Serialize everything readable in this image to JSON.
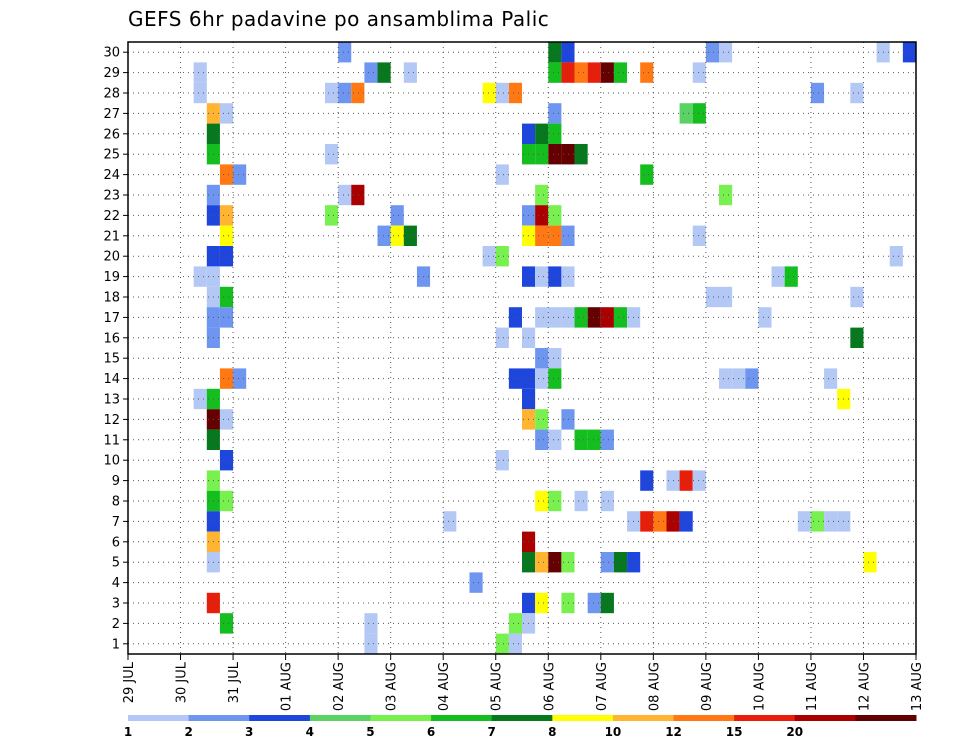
{
  "chart_data": {
    "type": "heatmap",
    "title": "GEFS 6hr padavine po ansamblima Palic",
    "x_tick_labels": [
      "29 JUL",
      "30 JUL",
      "31 JUL",
      "01 AUG",
      "02 AUG",
      "03 AUG",
      "04 AUG",
      "05 AUG",
      "06 AUG",
      "07 AUG",
      "08 AUG",
      "09 AUG",
      "10 AUG",
      "11 AUG",
      "12 AUG",
      "13 AUG"
    ],
    "y_tick_labels": [
      "1",
      "2",
      "3",
      "4",
      "5",
      "6",
      "7",
      "8",
      "9",
      "10",
      "11",
      "12",
      "13",
      "14",
      "15",
      "16",
      "17",
      "18",
      "19",
      "20",
      "21",
      "22",
      "23",
      "24",
      "25",
      "26",
      "27",
      "28",
      "29",
      "30"
    ],
    "x_unit": "6-hour step (4 per day)",
    "x_range": [
      0,
      60
    ],
    "y_range": [
      1,
      30
    ],
    "grid": "dotted",
    "legend": {
      "position": "bottom",
      "labels": [
        "1",
        "2",
        "3",
        "4",
        "5",
        "6",
        "7",
        "8",
        "10",
        "12",
        "15",
        "20"
      ],
      "colors": [
        "#b4c8f5",
        "#6e96f0",
        "#1e46dc",
        "#5ad264",
        "#78f050",
        "#14be1e",
        "#08781e",
        "#ffff00",
        "#ffb432",
        "#ff7814",
        "#e61e0a",
        "#aa0000",
        "#640000"
      ]
    },
    "cells": [
      {
        "x": 16,
        "y": 30,
        "c": 1
      },
      {
        "x": 32,
        "y": 30,
        "c": 6
      },
      {
        "x": 33,
        "y": 30,
        "c": 2
      },
      {
        "x": 44,
        "y": 30,
        "c": 1
      },
      {
        "x": 45,
        "y": 30,
        "c": 0
      },
      {
        "x": 57,
        "y": 30,
        "c": 0
      },
      {
        "x": 59,
        "y": 30,
        "c": 2
      },
      {
        "x": 5,
        "y": 29,
        "c": 0
      },
      {
        "x": 18,
        "y": 29,
        "c": 1
      },
      {
        "x": 19,
        "y": 29,
        "c": 6
      },
      {
        "x": 21,
        "y": 29,
        "c": 0
      },
      {
        "x": 32,
        "y": 29,
        "c": 5
      },
      {
        "x": 33,
        "y": 29,
        "c": 10
      },
      {
        "x": 34,
        "y": 29,
        "c": 9
      },
      {
        "x": 35,
        "y": 29,
        "c": 10
      },
      {
        "x": 36,
        "y": 29,
        "c": 12
      },
      {
        "x": 37,
        "y": 29,
        "c": 5
      },
      {
        "x": 39,
        "y": 29,
        "c": 9
      },
      {
        "x": 43,
        "y": 29,
        "c": 0
      },
      {
        "x": 5,
        "y": 28,
        "c": 0
      },
      {
        "x": 15,
        "y": 28,
        "c": 0
      },
      {
        "x": 16,
        "y": 28,
        "c": 1
      },
      {
        "x": 17,
        "y": 28,
        "c": 9
      },
      {
        "x": 27,
        "y": 28,
        "c": 7
      },
      {
        "x": 28,
        "y": 28,
        "c": 0
      },
      {
        "x": 29,
        "y": 28,
        "c": 9
      },
      {
        "x": 52,
        "y": 28,
        "c": 1
      },
      {
        "x": 55,
        "y": 28,
        "c": 0
      },
      {
        "x": 6,
        "y": 27,
        "c": 8
      },
      {
        "x": 7,
        "y": 27,
        "c": 0
      },
      {
        "x": 32,
        "y": 27,
        "c": 1
      },
      {
        "x": 42,
        "y": 27,
        "c": 3
      },
      {
        "x": 43,
        "y": 27,
        "c": 5
      },
      {
        "x": 6,
        "y": 26,
        "c": 6
      },
      {
        "x": 30,
        "y": 26,
        "c": 2
      },
      {
        "x": 31,
        "y": 26,
        "c": 6
      },
      {
        "x": 32,
        "y": 26,
        "c": 5
      },
      {
        "x": 6,
        "y": 25,
        "c": 5
      },
      {
        "x": 15,
        "y": 25,
        "c": 0
      },
      {
        "x": 30,
        "y": 25,
        "c": 5
      },
      {
        "x": 31,
        "y": 25,
        "c": 5
      },
      {
        "x": 32,
        "y": 25,
        "c": 12
      },
      {
        "x": 33,
        "y": 25,
        "c": 12
      },
      {
        "x": 34,
        "y": 25,
        "c": 6
      },
      {
        "x": 7,
        "y": 24,
        "c": 9
      },
      {
        "x": 8,
        "y": 24,
        "c": 1
      },
      {
        "x": 28,
        "y": 24,
        "c": 0
      },
      {
        "x": 39,
        "y": 24,
        "c": 5
      },
      {
        "x": 6,
        "y": 23,
        "c": 1
      },
      {
        "x": 16,
        "y": 23,
        "c": 0
      },
      {
        "x": 17,
        "y": 23,
        "c": 11
      },
      {
        "x": 31,
        "y": 23,
        "c": 4
      },
      {
        "x": 45,
        "y": 23,
        "c": 4
      },
      {
        "x": 6,
        "y": 22,
        "c": 2
      },
      {
        "x": 7,
        "y": 22,
        "c": 8
      },
      {
        "x": 15,
        "y": 22,
        "c": 4
      },
      {
        "x": 20,
        "y": 22,
        "c": 1
      },
      {
        "x": 30,
        "y": 22,
        "c": 1
      },
      {
        "x": 31,
        "y": 22,
        "c": 11
      },
      {
        "x": 32,
        "y": 22,
        "c": 4
      },
      {
        "x": 7,
        "y": 21,
        "c": 7
      },
      {
        "x": 19,
        "y": 21,
        "c": 1
      },
      {
        "x": 20,
        "y": 21,
        "c": 7
      },
      {
        "x": 21,
        "y": 21,
        "c": 6
      },
      {
        "x": 30,
        "y": 21,
        "c": 7
      },
      {
        "x": 31,
        "y": 21,
        "c": 9
      },
      {
        "x": 32,
        "y": 21,
        "c": 9
      },
      {
        "x": 33,
        "y": 21,
        "c": 1
      },
      {
        "x": 43,
        "y": 21,
        "c": 0
      },
      {
        "x": 6,
        "y": 20,
        "c": 2
      },
      {
        "x": 7,
        "y": 20,
        "c": 2
      },
      {
        "x": 27,
        "y": 20,
        "c": 0
      },
      {
        "x": 28,
        "y": 20,
        "c": 4
      },
      {
        "x": 58,
        "y": 20,
        "c": 0
      },
      {
        "x": 5,
        "y": 19,
        "c": 0
      },
      {
        "x": 6,
        "y": 19,
        "c": 0
      },
      {
        "x": 22,
        "y": 19,
        "c": 1
      },
      {
        "x": 30,
        "y": 19,
        "c": 2
      },
      {
        "x": 31,
        "y": 19,
        "c": 0
      },
      {
        "x": 32,
        "y": 19,
        "c": 2
      },
      {
        "x": 33,
        "y": 19,
        "c": 0
      },
      {
        "x": 49,
        "y": 19,
        "c": 0
      },
      {
        "x": 50,
        "y": 19,
        "c": 5
      },
      {
        "x": 6,
        "y": 18,
        "c": 0
      },
      {
        "x": 7,
        "y": 18,
        "c": 5
      },
      {
        "x": 44,
        "y": 18,
        "c": 0
      },
      {
        "x": 45,
        "y": 18,
        "c": 0
      },
      {
        "x": 55,
        "y": 18,
        "c": 0
      },
      {
        "x": 6,
        "y": 17,
        "c": 1
      },
      {
        "x": 7,
        "y": 17,
        "c": 1
      },
      {
        "x": 29,
        "y": 17,
        "c": 2
      },
      {
        "x": 31,
        "y": 17,
        "c": 0
      },
      {
        "x": 32,
        "y": 17,
        "c": 0
      },
      {
        "x": 33,
        "y": 17,
        "c": 0
      },
      {
        "x": 34,
        "y": 17,
        "c": 5
      },
      {
        "x": 35,
        "y": 17,
        "c": 12
      },
      {
        "x": 36,
        "y": 17,
        "c": 11
      },
      {
        "x": 37,
        "y": 17,
        "c": 5
      },
      {
        "x": 38,
        "y": 17,
        "c": 0
      },
      {
        "x": 48,
        "y": 17,
        "c": 0
      },
      {
        "x": 6,
        "y": 16,
        "c": 1
      },
      {
        "x": 28,
        "y": 16,
        "c": 0
      },
      {
        "x": 30,
        "y": 16,
        "c": 0
      },
      {
        "x": 55,
        "y": 16,
        "c": 6
      },
      {
        "x": 31,
        "y": 15,
        "c": 1
      },
      {
        "x": 32,
        "y": 15,
        "c": 0
      },
      {
        "x": 7,
        "y": 14,
        "c": 9
      },
      {
        "x": 8,
        "y": 14,
        "c": 1
      },
      {
        "x": 29,
        "y": 14,
        "c": 2
      },
      {
        "x": 30,
        "y": 14,
        "c": 2
      },
      {
        "x": 31,
        "y": 14,
        "c": 0
      },
      {
        "x": 32,
        "y": 14,
        "c": 5
      },
      {
        "x": 45,
        "y": 14,
        "c": 0
      },
      {
        "x": 46,
        "y": 14,
        "c": 0
      },
      {
        "x": 47,
        "y": 14,
        "c": 1
      },
      {
        "x": 53,
        "y": 14,
        "c": 0
      },
      {
        "x": 5,
        "y": 13,
        "c": 0
      },
      {
        "x": 6,
        "y": 13,
        "c": 5
      },
      {
        "x": 30,
        "y": 13,
        "c": 2
      },
      {
        "x": 54,
        "y": 13,
        "c": 7
      },
      {
        "x": 6,
        "y": 12,
        "c": 12
      },
      {
        "x": 7,
        "y": 12,
        "c": 0
      },
      {
        "x": 30,
        "y": 12,
        "c": 8
      },
      {
        "x": 31,
        "y": 12,
        "c": 4
      },
      {
        "x": 33,
        "y": 12,
        "c": 1
      },
      {
        "x": 6,
        "y": 11,
        "c": 6
      },
      {
        "x": 31,
        "y": 11,
        "c": 1
      },
      {
        "x": 32,
        "y": 11,
        "c": 0
      },
      {
        "x": 34,
        "y": 11,
        "c": 5
      },
      {
        "x": 35,
        "y": 11,
        "c": 5
      },
      {
        "x": 36,
        "y": 11,
        "c": 1
      },
      {
        "x": 7,
        "y": 10,
        "c": 2
      },
      {
        "x": 28,
        "y": 10,
        "c": 0
      },
      {
        "x": 6,
        "y": 9,
        "c": 4
      },
      {
        "x": 39,
        "y": 9,
        "c": 2
      },
      {
        "x": 41,
        "y": 9,
        "c": 0
      },
      {
        "x": 42,
        "y": 9,
        "c": 10
      },
      {
        "x": 43,
        "y": 9,
        "c": 0
      },
      {
        "x": 6,
        "y": 8,
        "c": 5
      },
      {
        "x": 7,
        "y": 8,
        "c": 4
      },
      {
        "x": 31,
        "y": 8,
        "c": 7
      },
      {
        "x": 32,
        "y": 8,
        "c": 4
      },
      {
        "x": 34,
        "y": 8,
        "c": 0
      },
      {
        "x": 36,
        "y": 8,
        "c": 0
      },
      {
        "x": 6,
        "y": 7,
        "c": 2
      },
      {
        "x": 24,
        "y": 7,
        "c": 0
      },
      {
        "x": 38,
        "y": 7,
        "c": 0
      },
      {
        "x": 39,
        "y": 7,
        "c": 10
      },
      {
        "x": 40,
        "y": 7,
        "c": 9
      },
      {
        "x": 41,
        "y": 7,
        "c": 11
      },
      {
        "x": 42,
        "y": 7,
        "c": 2
      },
      {
        "x": 51,
        "y": 7,
        "c": 0
      },
      {
        "x": 52,
        "y": 7,
        "c": 4
      },
      {
        "x": 53,
        "y": 7,
        "c": 0
      },
      {
        "x": 54,
        "y": 7,
        "c": 0
      },
      {
        "x": 6,
        "y": 6,
        "c": 8
      },
      {
        "x": 30,
        "y": 6,
        "c": 11
      },
      {
        "x": 6,
        "y": 5,
        "c": 0
      },
      {
        "x": 30,
        "y": 5,
        "c": 6
      },
      {
        "x": 31,
        "y": 5,
        "c": 8
      },
      {
        "x": 32,
        "y": 5,
        "c": 12
      },
      {
        "x": 33,
        "y": 5,
        "c": 4
      },
      {
        "x": 36,
        "y": 5,
        "c": 1
      },
      {
        "x": 37,
        "y": 5,
        "c": 6
      },
      {
        "x": 38,
        "y": 5,
        "c": 2
      },
      {
        "x": 56,
        "y": 5,
        "c": 7
      },
      {
        "x": 26,
        "y": 4,
        "c": 1
      },
      {
        "x": 6,
        "y": 3,
        "c": 10
      },
      {
        "x": 30,
        "y": 3,
        "c": 2
      },
      {
        "x": 31,
        "y": 3,
        "c": 7
      },
      {
        "x": 33,
        "y": 3,
        "c": 4
      },
      {
        "x": 35,
        "y": 3,
        "c": 1
      },
      {
        "x": 36,
        "y": 3,
        "c": 6
      },
      {
        "x": 7,
        "y": 2,
        "c": 5
      },
      {
        "x": 18,
        "y": 2,
        "c": 0
      },
      {
        "x": 29,
        "y": 2,
        "c": 4
      },
      {
        "x": 30,
        "y": 2,
        "c": 0
      },
      {
        "x": 18,
        "y": 1,
        "c": 0
      },
      {
        "x": 28,
        "y": 1,
        "c": 4
      },
      {
        "x": 29,
        "y": 1,
        "c": 0
      }
    ]
  }
}
